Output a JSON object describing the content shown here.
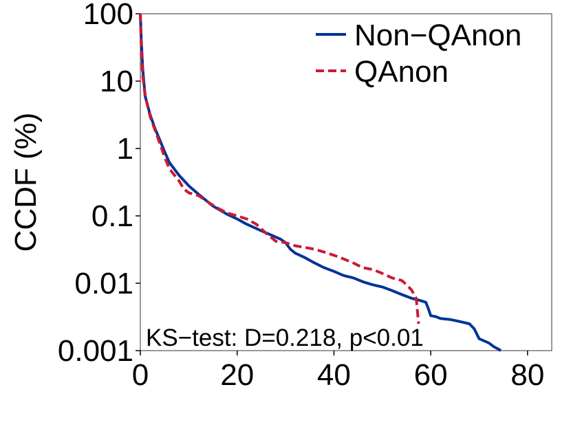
{
  "chart_data": {
    "type": "line",
    "title": "",
    "xlabel": "",
    "ylabel": "CCDF (%)",
    "xlim": [
      0,
      85
    ],
    "ylim": [
      0.001,
      100
    ],
    "yscale": "log",
    "x_ticks": [
      0,
      20,
      40,
      60,
      80
    ],
    "x_tick_labels": [
      "0",
      "20",
      "40",
      "60",
      "80"
    ],
    "y_ticks": [
      100,
      10,
      1,
      0.1,
      0.01,
      0.001
    ],
    "y_tick_labels": [
      "100",
      "10",
      "1",
      "0.1",
      "0.01",
      "0.001"
    ],
    "grid": false,
    "legend_position": "top-right",
    "annotation": "KS−test: D=0.218, p<0.01",
    "series": [
      {
        "name": "Non−QAnon",
        "color": "#003399",
        "dash": "solid",
        "x": [
          0,
          0.2,
          0.5,
          1,
          2,
          3,
          4,
          5,
          6,
          8,
          10,
          12,
          15,
          18,
          20,
          22,
          25,
          27,
          29,
          30,
          31,
          32,
          34,
          36,
          38,
          40,
          42,
          44,
          46,
          48,
          50,
          52,
          54,
          56,
          58,
          59,
          59.5,
          60,
          61,
          62,
          64,
          66,
          68,
          69,
          70,
          72,
          73,
          74,
          74.5
        ],
        "y": [
          100,
          40,
          15,
          6,
          3.2,
          2.0,
          1.35,
          0.9,
          0.62,
          0.4,
          0.28,
          0.21,
          0.14,
          0.105,
          0.09,
          0.075,
          0.06,
          0.052,
          0.045,
          0.04,
          0.032,
          0.028,
          0.024,
          0.02,
          0.017,
          0.015,
          0.013,
          0.012,
          0.0105,
          0.0095,
          0.0088,
          0.0078,
          0.0068,
          0.006,
          0.0055,
          0.0052,
          0.0042,
          0.0033,
          0.0032,
          0.003,
          0.0029,
          0.0027,
          0.0025,
          0.0021,
          0.0015,
          0.0013,
          0.00115,
          0.00105,
          0.001
        ]
      },
      {
        "name": "QAnon",
        "color": "#cc1a33",
        "dash": "dashed",
        "x": [
          0,
          0.2,
          0.5,
          1,
          2,
          3,
          4,
          5,
          6,
          8,
          9,
          10,
          12,
          14,
          16,
          18,
          20,
          22,
          24,
          26,
          28,
          30,
          32,
          34,
          36,
          38,
          40,
          42,
          44,
          46,
          48,
          50,
          52,
          54,
          55,
          56,
          57,
          57.5
        ],
        "y": [
          100,
          30,
          12,
          6,
          3,
          1.9,
          1.2,
          0.75,
          0.5,
          0.33,
          0.25,
          0.22,
          0.2,
          0.16,
          0.13,
          0.11,
          0.1,
          0.09,
          0.075,
          0.055,
          0.042,
          0.04,
          0.036,
          0.034,
          0.032,
          0.029,
          0.026,
          0.023,
          0.02,
          0.017,
          0.016,
          0.014,
          0.012,
          0.011,
          0.0095,
          0.008,
          0.006,
          0.0025
        ]
      }
    ]
  }
}
